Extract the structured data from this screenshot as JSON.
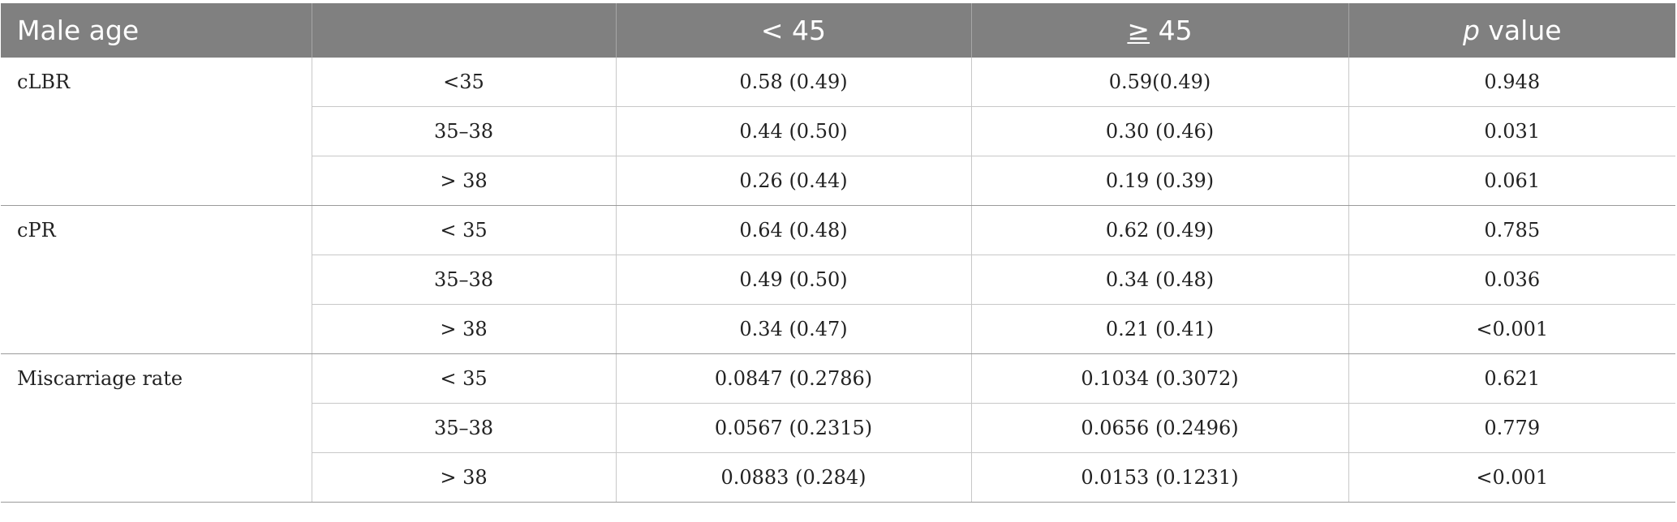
{
  "header": {
    "col1": "Male age",
    "col3": "< 45",
    "col4_symbol": "≥",
    "col4_value": " 45",
    "col5_italic": "p",
    "col5_rest": " value"
  },
  "groups": [
    {
      "label": "cLBR",
      "rows": [
        {
          "age": "<35",
          "lt45": "0.58 (0.49)",
          "ge45": "0.59(0.49)",
          "p": "0.948"
        },
        {
          "age": "35–38",
          "lt45": "0.44 (0.50)",
          "ge45": "0.30 (0.46)",
          "p": "0.031"
        },
        {
          "age": "> 38",
          "lt45": "0.26 (0.44)",
          "ge45": "0.19 (0.39)",
          "p": "0.061"
        }
      ]
    },
    {
      "label": "cPR",
      "rows": [
        {
          "age": "< 35",
          "lt45": "0.64 (0.48)",
          "ge45": "0.62 (0.49)",
          "p": "0.785"
        },
        {
          "age": "35–38",
          "lt45": "0.49 (0.50)",
          "ge45": "0.34 (0.48)",
          "p": "0.036"
        },
        {
          "age": "> 38",
          "lt45": "0.34 (0.47)",
          "ge45": "0.21 (0.41)",
          "p": "<0.001"
        }
      ]
    },
    {
      "label": "Miscarriage rate",
      "rows": [
        {
          "age": "< 35",
          "lt45": "0.0847 (0.2786)",
          "ge45": "0.1034 (0.3072)",
          "p": "0.621"
        },
        {
          "age": "35–38",
          "lt45": "0.0567 (0.2315)",
          "ge45": "0.0656 (0.2496)",
          "p": "0.779"
        },
        {
          "age": "> 38",
          "lt45": "0.0883 (0.284)",
          "ge45": "0.0153 (0.1231)",
          "p": "<0.001"
        }
      ]
    }
  ]
}
